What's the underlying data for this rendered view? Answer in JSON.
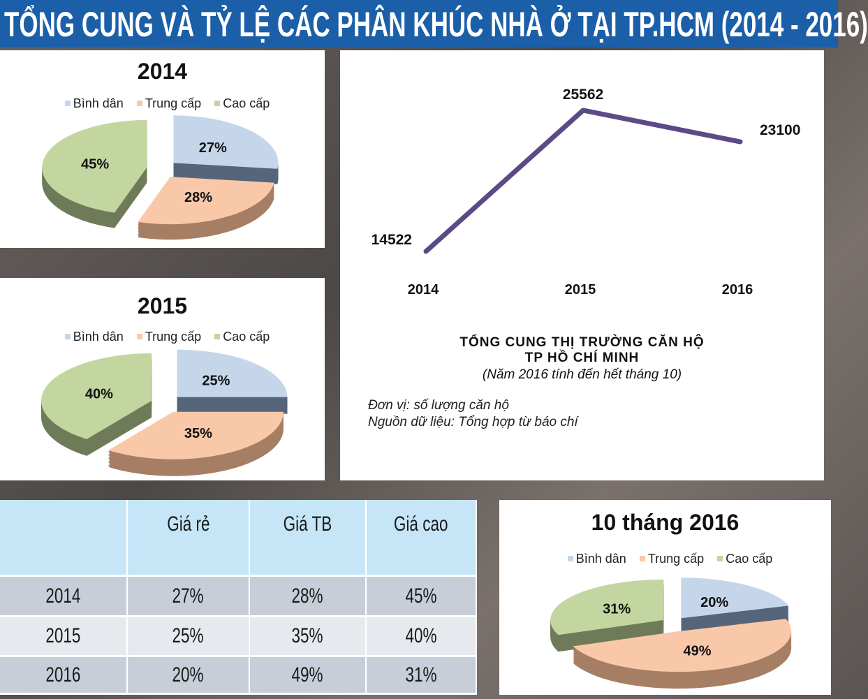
{
  "title": "TỔNG CUNG VÀ TỶ LỆ CÁC PHÂN KHÚC NHÀ Ở TẠI TP.HCM (2014 - 2016)",
  "legend": [
    "Bình dân",
    "Trung cấp",
    "Cao cấp"
  ],
  "colors": {
    "binh_dan": "#c6d6ea",
    "trung_cap": "#f8c8a8",
    "cao_cap": "#c4d6a0",
    "line": "#5b4a86",
    "title_bar": "#1b5fa9"
  },
  "chart_data": [
    {
      "type": "pie",
      "title": "2014",
      "categories": [
        "Bình dân",
        "Trung cấp",
        "Cao cấp"
      ],
      "values": [
        27,
        28,
        45
      ],
      "labels": [
        "27%",
        "28%",
        "45%"
      ]
    },
    {
      "type": "pie",
      "title": "2015",
      "categories": [
        "Bình dân",
        "Trung cấp",
        "Cao cấp"
      ],
      "values": [
        25,
        35,
        40
      ],
      "labels": [
        "25%",
        "35%",
        "40%"
      ]
    },
    {
      "type": "line",
      "title": "TỔNG CUNG THỊ TRƯỜNG CĂN HỘ",
      "title2": "TP HỒ CHÍ MINH",
      "subtitle": "(Năm 2016 tính đến hết tháng 10)",
      "x": [
        "2014",
        "2015",
        "2016"
      ],
      "y": [
        14522,
        25562,
        23100
      ],
      "labels": [
        "14522",
        "25562",
        "23100"
      ],
      "unit": "Đơn vị: số lượng căn hộ",
      "source": "Nguồn dữ liệu: Tổng hợp từ báo chí"
    },
    {
      "type": "pie",
      "title": "10 tháng 2016",
      "categories": [
        "Bình dân",
        "Trung cấp",
        "Cao cấp"
      ],
      "values": [
        20,
        49,
        31
      ],
      "labels": [
        "20%",
        "49%",
        "31%"
      ]
    },
    {
      "type": "table",
      "columns": [
        "",
        "Giá rẻ",
        "Giá TB",
        "Giá cao"
      ],
      "rows": [
        [
          "2014",
          "27%",
          "28%",
          "45%"
        ],
        [
          "2015",
          "25%",
          "35%",
          "40%"
        ],
        [
          "2016",
          "20%",
          "49%",
          "31%"
        ]
      ]
    }
  ]
}
